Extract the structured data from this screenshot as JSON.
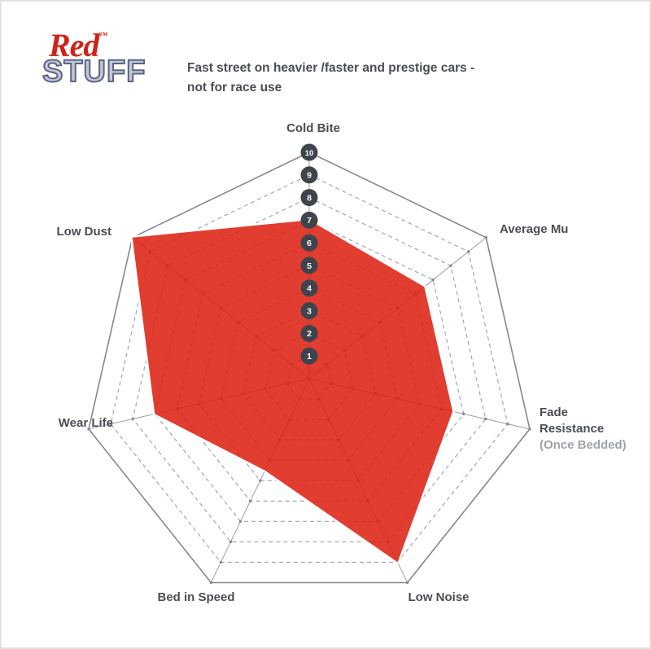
{
  "logo": {
    "red": "Red",
    "tm": "™",
    "stuff": "STUFF",
    "red_color": "#cf2318",
    "stuff_fill": "#c3c7da",
    "stuff_outline": "#5d6583"
  },
  "title": {
    "line1": "Fast street on heavier /faster and prestige cars -",
    "line2": "not for race use",
    "color": "#4a4e55"
  },
  "chart_data": {
    "type": "radar",
    "title": "Redstuff brake pad performance profile",
    "categories": [
      "Cold Bite",
      "Average Mu",
      "Fade Resistance (Once Bedded)",
      "Low Noise",
      "Bed in Speed",
      "Wear Life",
      "Low Dust"
    ],
    "series": [
      {
        "name": "Redstuff",
        "values": [
          7,
          6.5,
          6.5,
          9,
          4.5,
          7,
          10
        ]
      }
    ],
    "scale": {
      "min": 1,
      "max": 10,
      "ticks": [
        1,
        2,
        3,
        4,
        5,
        6,
        7,
        8,
        9,
        10
      ]
    },
    "axes_count": 7,
    "grid": "concentric dashed heptagon rings, solid outer ring, solid spokes with dots at intersections",
    "legend_position": "none",
    "labels": [
      {
        "text": "Cold Bite"
      },
      {
        "text": "Average Mu"
      },
      {
        "text": "Fade Resistance",
        "sub": "(Once Bedded)"
      },
      {
        "text": "Low Noise"
      },
      {
        "text": "Bed in Speed"
      },
      {
        "text": "Wear Life"
      },
      {
        "text": "Low Dust"
      }
    ],
    "colors": {
      "fill": "#dd2012",
      "fill_opacity": 0.87,
      "halo": "#ffffff",
      "ring": "#9aa0a8",
      "outer_ring": "#83898f",
      "spoke": "#9aa0a8",
      "dot": "#83898f",
      "tick_circle": "#3f444c",
      "tick_text": "#ffffff",
      "label": "#4a4e55",
      "sub_label": "#9fa3a9"
    }
  }
}
